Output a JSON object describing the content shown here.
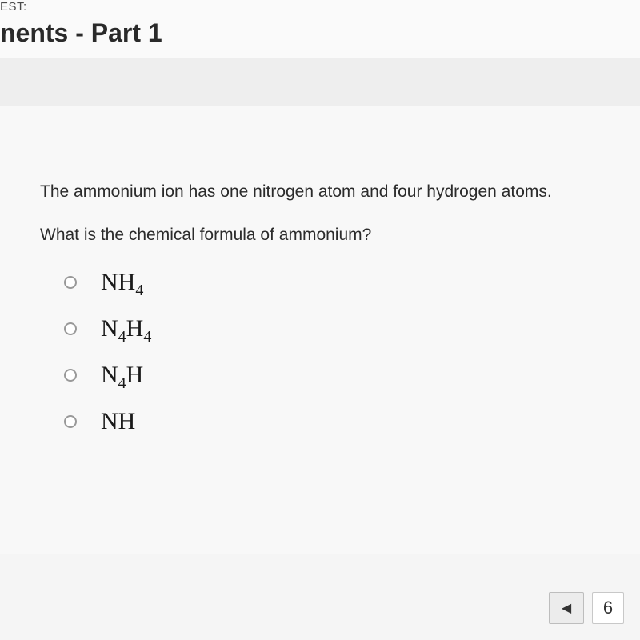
{
  "header": {
    "test_label": "EST:",
    "title": "nents - Part 1"
  },
  "question": {
    "line1": "The ammonium ion has one nitrogen atom and four hydrogen atoms.",
    "line2": "What is the chemical formula of ammonium?",
    "options": [
      {
        "base1": "NH",
        "sub1": "4",
        "base2": "",
        "sub2": ""
      },
      {
        "base1": "N",
        "sub1": "4",
        "base2": "H",
        "sub2": "4"
      },
      {
        "base1": "N",
        "sub1": "4",
        "base2": "H",
        "sub2": ""
      },
      {
        "base1": "NH",
        "sub1": "",
        "base2": "",
        "sub2": ""
      }
    ]
  },
  "nav": {
    "prev_symbol": "◀",
    "page_number": "6"
  },
  "colors": {
    "page_bg": "#f5f5f5",
    "header_bg": "#fafafa",
    "content_bg": "#f8f8f8",
    "text_primary": "#2a2a2a",
    "text_body": "#2b2b2b",
    "radio_border": "#999999",
    "button_bg": "#ececec",
    "button_border": "#bdbdbd"
  }
}
